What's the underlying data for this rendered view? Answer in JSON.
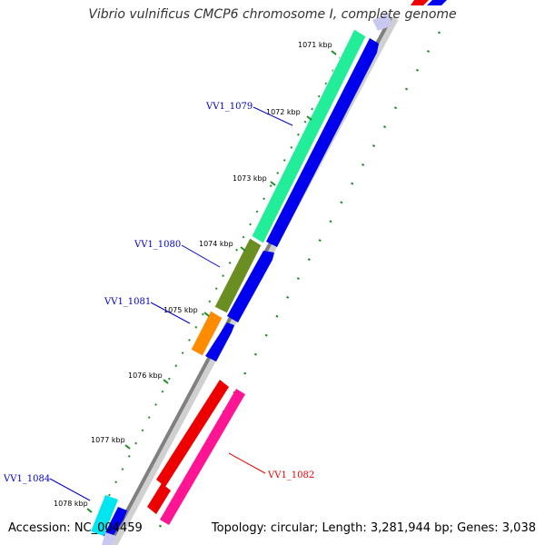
{
  "title": "Vibrio vulnificus CMCP6 chromosome I, complete genome",
  "footer": {
    "accession": "Accession: NC_004459",
    "summary": "Topology: circular; Length: 3,281,944 bp; Genes: 3,038"
  },
  "scale_labels": [
    "1071 kbp",
    "1072 kbp",
    "1073 kbp",
    "1074 kbp",
    "1075 kbp",
    "1076 kbp",
    "1077 kbp",
    "1078 kbp"
  ],
  "gene_labels": [
    {
      "text": "VV1_1079",
      "color": "#0000cc"
    },
    {
      "text": "VV1_1080",
      "color": "#0000cc"
    },
    {
      "text": "VV1_1081",
      "color": "#0000cc"
    },
    {
      "text": "VV1_1082",
      "color": "#ee0000"
    },
    {
      "text": "VV1_1084",
      "color": "#0000cc"
    }
  ],
  "colors": {
    "backbone": "#808080",
    "vv1_1079": "#22ee99",
    "vv1_1080": "#6b8e23",
    "vv1_1081": "#ff8c00",
    "vv1_1082": "#ee0000",
    "vv1_1082_product": "#ff1493",
    "vv1_1084": "#00e5ee",
    "cds": "#0000ee",
    "tick": "#228b22"
  }
}
